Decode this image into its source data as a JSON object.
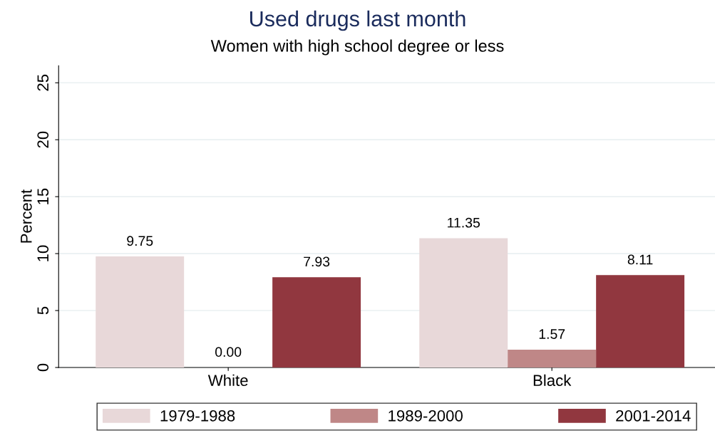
{
  "chart_data": {
    "type": "bar",
    "title": "Used drugs last month",
    "subtitle": "Women with high school degree or less",
    "ylabel": "Percent",
    "categories": [
      "White",
      "Black"
    ],
    "series": [
      {
        "name": "1979-1988",
        "color": "#e8d8d9",
        "values": [
          9.75,
          11.35
        ],
        "value_labels": [
          "9.75",
          "11.35"
        ]
      },
      {
        "name": "1989-2000",
        "color": "#bf8787",
        "values": [
          0.0,
          1.57
        ],
        "value_labels": [
          "0.00",
          "1.57"
        ]
      },
      {
        "name": "2001-2014",
        "color": "#91373f",
        "values": [
          7.93,
          8.11
        ],
        "value_labels": [
          "7.93",
          "8.11"
        ]
      }
    ],
    "ylim": [
      0,
      26.5
    ],
    "yticks": [
      0,
      5,
      10,
      15,
      20,
      25
    ],
    "grid": "y",
    "legend": "bottom"
  }
}
